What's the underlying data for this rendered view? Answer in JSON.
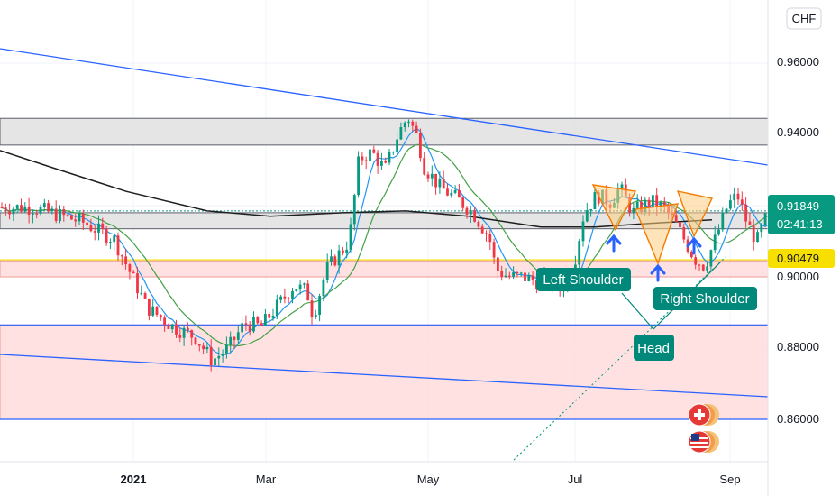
{
  "currency_label": "CHF",
  "price_axis": {
    "ticks": [
      "0.96000",
      "0.94000",
      "0.90000",
      "0.88000",
      "0.86000"
    ]
  },
  "time_axis": {
    "ticks": [
      {
        "label": "2021",
        "bold": true
      },
      {
        "label": "Mar",
        "bold": false
      },
      {
        "label": "May",
        "bold": false
      },
      {
        "label": "Jul",
        "bold": false
      },
      {
        "label": "Sep",
        "bold": false
      }
    ]
  },
  "current_price": {
    "value": "0.91849",
    "countdown": "02:41:13",
    "color": "#089981"
  },
  "level_tag": {
    "value": "0.90479",
    "color": "#f7e000"
  },
  "annotations": {
    "left_shoulder": "Left Shoulder",
    "head": "Head",
    "right_shoulder": "Right Shoulder"
  },
  "colors": {
    "up": "#089981",
    "down": "#f23645",
    "trendline": "#2962ff",
    "ma_black": "#1e1e1e",
    "ma_green": "#43a047",
    "ma_blue": "#2196f3",
    "pattern": "#f57c00",
    "label_bg": "#00897b",
    "zone_gray": "#d1d4dc",
    "zone_red": "#ffcdd2"
  },
  "icons": [
    "swiss-flag-icon",
    "us-flag-icon"
  ],
  "chart_data": {
    "type": "candlestick",
    "symbol_currency": "CHF",
    "y_range": [
      0.849,
      0.98
    ],
    "x_ticks": [
      "2021",
      "Mar",
      "May",
      "Jul",
      "Sep"
    ],
    "series": [
      {
        "name": "price",
        "values": [
          [
            1.0,
            0.9195
          ],
          [
            2.5,
            0.9155
          ],
          [
            3.5,
            0.9105
          ],
          [
            4.5,
            0.8915
          ],
          [
            5.3,
            0.886
          ],
          [
            6.0,
            0.883
          ],
          [
            6.5,
            0.8765
          ],
          [
            7.0,
            0.88
          ],
          [
            7.5,
            0.887
          ],
          [
            8.0,
            0.886
          ],
          [
            8.3,
            0.8895
          ],
          [
            9.0,
            0.8975
          ],
          [
            9.4,
            0.896
          ],
          [
            9.6,
            0.889
          ],
          [
            10.0,
            0.902
          ],
          [
            10.7,
            0.91
          ],
          [
            11.0,
            0.933
          ],
          [
            11.4,
            0.935
          ],
          [
            11.8,
            0.93
          ],
          [
            12.2,
            0.94
          ],
          [
            12.5,
            0.945
          ],
          [
            12.8,
            0.939
          ],
          [
            13.0,
            0.931
          ],
          [
            13.5,
            0.925
          ],
          [
            14.0,
            0.922
          ],
          [
            14.5,
            0.918
          ],
          [
            15.0,
            0.911
          ],
          [
            15.2,
            0.902
          ],
          [
            15.6,
            0.9
          ],
          [
            16.0,
            0.9
          ],
          [
            16.5,
            0.8985
          ],
          [
            17.0,
            0.899
          ],
          [
            17.3,
            0.896
          ],
          [
            17.6,
            0.904
          ],
          [
            17.9,
            0.918
          ],
          [
            18.3,
            0.923
          ],
          [
            18.7,
            0.921
          ],
          [
            19.0,
            0.925
          ],
          [
            19.4,
            0.918
          ],
          [
            19.7,
            0.92
          ],
          [
            20.0,
            0.921
          ],
          [
            20.4,
            0.919
          ],
          [
            20.7,
            0.915
          ],
          [
            21.0,
            0.91
          ],
          [
            21.3,
            0.905
          ],
          [
            21.6,
            0.903
          ],
          [
            21.9,
            0.91
          ],
          [
            22.3,
            0.92
          ],
          [
            22.6,
            0.923
          ],
          [
            22.9,
            0.915
          ],
          [
            23.2,
            0.91
          ],
          [
            23.5,
            0.917
          ],
          [
            23.7,
            0.9185
          ]
        ]
      },
      {
        "name": "",
        "kind": "ma",
        "values": []
      }
    ],
    "zones": [
      {
        "label": "",
        "from": 0.937,
        "to": 0.9445,
        "color": "gray"
      },
      {
        "label": "",
        "from": 0.9135,
        "to": 0.918,
        "color": "gray"
      },
      {
        "label": "",
        "from": 0.9,
        "to": 0.9045,
        "color": "red"
      },
      {
        "label": "",
        "from": 0.86,
        "to": 0.8865,
        "color": "red"
      }
    ],
    "horizontal_lines": [
      0.9048,
      0.8865,
      0.86
    ],
    "pattern": "inverse head and shoulders",
    "grid": true,
    "legend": "none"
  }
}
